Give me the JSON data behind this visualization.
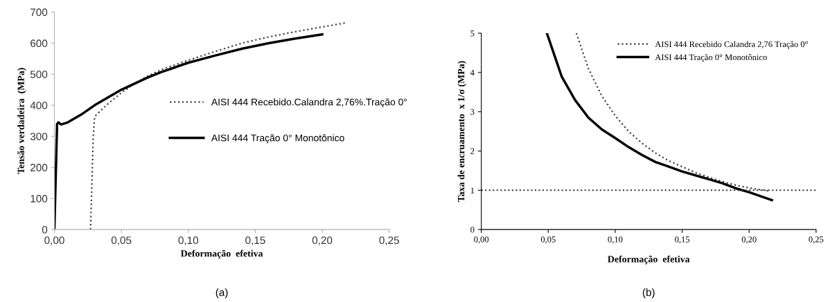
{
  "chart_data": [
    {
      "type": "line",
      "xlabel": "Deformação  efetiva",
      "ylabel": "Tensão verdadeira  (MPa)",
      "annotations": [
        "(a)"
      ],
      "legend": "right",
      "grid": false,
      "xlim": [
        0,
        0.25
      ],
      "ylim": [
        0,
        700
      ],
      "xticks": [
        {
          "value": 0,
          "label": "0,00"
        },
        {
          "value": 0.05,
          "label": "0,05"
        },
        {
          "value": 0.1,
          "label": "0,10"
        },
        {
          "value": 0.15,
          "label": "0,15"
        },
        {
          "value": 0.2,
          "label": "0,20"
        },
        {
          "value": 0.25,
          "label": "0,25"
        }
      ],
      "yticks": [
        0,
        100,
        200,
        300,
        400,
        500,
        600,
        700
      ],
      "series": [
        {
          "name": "AISI 444 Recebido.Calandra 2,76%.Tração 0°",
          "color": "#404040",
          "line_style": "dotted",
          "x": [
            0.027,
            0.029,
            0.03,
            0.031,
            0.04,
            0.05,
            0.06,
            0.07,
            0.08,
            0.1,
            0.12,
            0.14,
            0.16,
            0.18,
            0.2,
            0.217
          ],
          "values": [
            0,
            300,
            360,
            368,
            405,
            440,
            470,
            495,
            515,
            545,
            573,
            600,
            620,
            637,
            652,
            665
          ]
        },
        {
          "name": "AISI 444 Tração 0° Monotônico",
          "color": "#000000",
          "line_style": "solid",
          "x": [
            0,
            0.002,
            0.003,
            0.005,
            0.01,
            0.02,
            0.03,
            0.04,
            0.05,
            0.06,
            0.07,
            0.08,
            0.09,
            0.1,
            0.12,
            0.14,
            0.16,
            0.18,
            0.2
          ],
          "values": [
            0,
            340,
            345,
            338,
            345,
            370,
            400,
            425,
            450,
            470,
            490,
            507,
            522,
            537,
            560,
            582,
            600,
            615,
            628
          ]
        }
      ]
    },
    {
      "type": "line",
      "xlabel": "Deformação  efetiva",
      "ylabel": "Taxa de encruamento  x 1/σ (MPa)",
      "annotations": [
        "(b)"
      ],
      "legend": "top right",
      "grid": false,
      "xlim": [
        0,
        0.25
      ],
      "ylim": [
        0,
        5
      ],
      "xticks": [
        {
          "value": 0,
          "label": "0,00"
        },
        {
          "value": 0.05,
          "label": "0,05"
        },
        {
          "value": 0.1,
          "label": "0,10"
        },
        {
          "value": 0.15,
          "label": "0,15"
        },
        {
          "value": 0.2,
          "label": "0,20"
        },
        {
          "value": 0.25,
          "label": "0,25"
        }
      ],
      "yticks": [
        0,
        1,
        2,
        3,
        4,
        5
      ],
      "ref_lines": [
        {
          "axis": "y",
          "value": 1,
          "color": "#303030",
          "line_style": "dotted"
        }
      ],
      "series": [
        {
          "name": "AISI 444 Recebido Calandra 2,76 Tração 0°",
          "color": "#404040",
          "line_style": "dotted",
          "x": [
            0.071,
            0.08,
            0.09,
            0.1,
            0.11,
            0.12,
            0.13,
            0.14,
            0.15,
            0.16,
            0.17,
            0.18,
            0.19,
            0.2,
            0.215
          ],
          "values": [
            5,
            4.1,
            3.4,
            2.9,
            2.5,
            2.2,
            1.95,
            1.75,
            1.6,
            1.45,
            1.33,
            1.22,
            1.13,
            1.06,
            0.98
          ]
        },
        {
          "name": "AISI 444 Tração 0° Monotônico",
          "color": "#000000",
          "line_style": "solid",
          "x": [
            0.049,
            0.055,
            0.06,
            0.07,
            0.08,
            0.09,
            0.1,
            0.11,
            0.12,
            0.13,
            0.14,
            0.15,
            0.16,
            0.17,
            0.18,
            0.19,
            0.2,
            0.21,
            0.217
          ],
          "values": [
            5,
            4.4,
            3.9,
            3.3,
            2.85,
            2.55,
            2.33,
            2.1,
            1.9,
            1.72,
            1.6,
            1.48,
            1.38,
            1.28,
            1.18,
            1.05,
            0.95,
            0.83,
            0.75
          ]
        }
      ]
    }
  ]
}
